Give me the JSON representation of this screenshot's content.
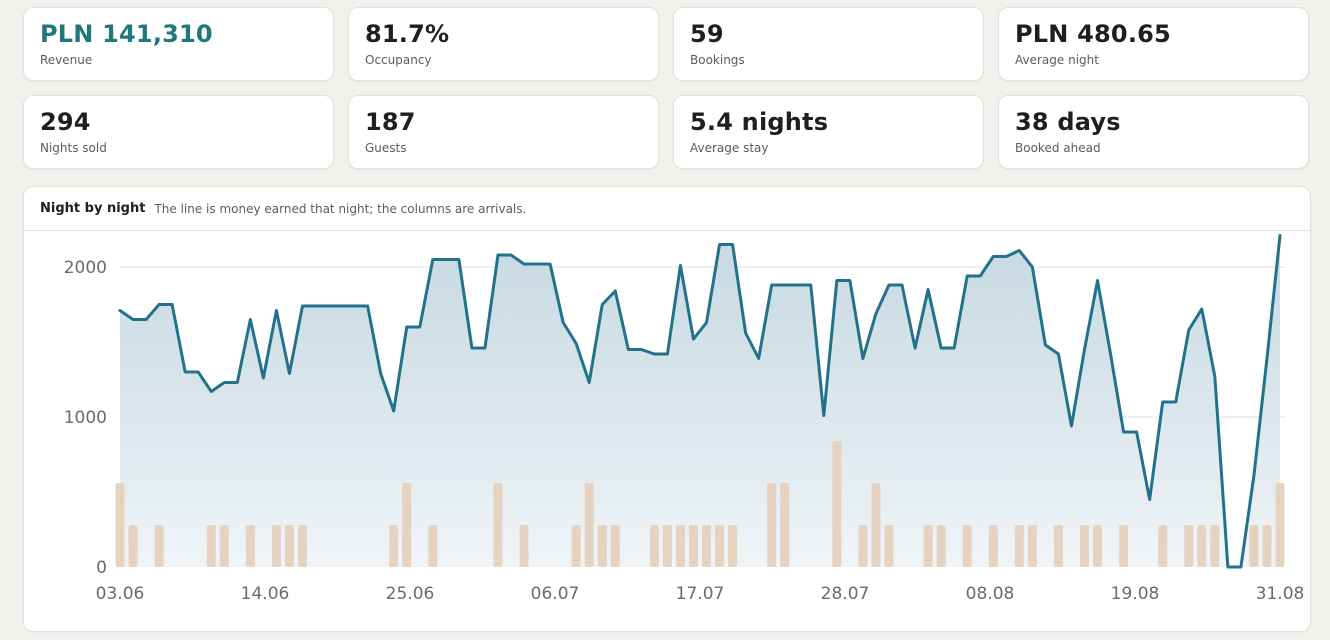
{
  "kpis": [
    {
      "value": "PLN 141,310",
      "label": "Revenue"
    },
    {
      "value": "81.7%",
      "label": "Occupancy"
    },
    {
      "value": "59",
      "label": "Bookings"
    },
    {
      "value": "PLN 480.65",
      "label": "Average night"
    },
    {
      "value": "294",
      "label": "Nights sold"
    },
    {
      "value": "187",
      "label": "Guests"
    },
    {
      "value": "5.4 nights",
      "label": "Average stay"
    },
    {
      "value": "38 days",
      "label": "Booked ahead"
    }
  ],
  "chart": {
    "title": "Night by night",
    "subtitle": "The line is money earned that night; the columns are arrivals."
  },
  "colors": {
    "accent": "#21787a",
    "line": "#23728c",
    "column": "#e5d3c0",
    "grid": "#dde3e6"
  },
  "chart_data": {
    "type": "line",
    "title": "",
    "x_ticks": [
      "03.06",
      "14.06",
      "25.06",
      "06.07",
      "17.07",
      "28.07",
      "08.08",
      "19.08",
      "31.08"
    ],
    "y_ticks": [
      0,
      1000,
      2000
    ],
    "ylim": [
      0,
      2200
    ],
    "series": [
      {
        "type": "area",
        "values": [
          1710,
          1650,
          1650,
          1750,
          1750,
          1300,
          1300,
          1170,
          1230,
          1230,
          1650,
          1260,
          1710,
          1290,
          1740,
          1740,
          1740,
          1740,
          1740,
          1740,
          1290,
          1040,
          1600,
          1600,
          2050,
          2050,
          2050,
          1460,
          1460,
          2080,
          2080,
          2020,
          2020,
          2020,
          1630,
          1490,
          1230,
          1750,
          1840,
          1450,
          1450,
          1420,
          1420,
          2010,
          1520,
          1630,
          2150,
          2150,
          1560,
          1390,
          1880,
          1880,
          1880,
          1880,
          1010,
          1910,
          1910,
          1390,
          1690,
          1880,
          1880,
          1460,
          1850,
          1460,
          1460,
          1940,
          1940,
          2070,
          2070,
          2110,
          2000,
          1480,
          1420,
          940,
          1450,
          1910,
          1420,
          900,
          900,
          450,
          1100,
          1100,
          1580,
          1720,
          1270,
          0,
          0,
          610,
          1390,
          2210
        ]
      },
      {
        "type": "bar",
        "values": [
          2,
          1,
          0,
          1,
          0,
          0,
          0,
          1,
          1,
          0,
          1,
          0,
          1,
          1,
          1,
          0,
          0,
          0,
          0,
          0,
          0,
          1,
          2,
          0,
          1,
          0,
          0,
          0,
          0,
          2,
          0,
          1,
          0,
          0,
          0,
          1,
          2,
          1,
          1,
          0,
          0,
          1,
          1,
          1,
          1,
          1,
          1,
          1,
          0,
          0,
          2,
          2,
          0,
          0,
          0,
          3,
          0,
          1,
          2,
          1,
          0,
          0,
          1,
          1,
          0,
          1,
          0,
          1,
          0,
          1,
          1,
          0,
          1,
          0,
          1,
          1,
          0,
          1,
          0,
          0,
          1,
          0,
          1,
          1,
          1,
          0,
          0,
          1,
          1,
          2
        ]
      }
    ]
  }
}
